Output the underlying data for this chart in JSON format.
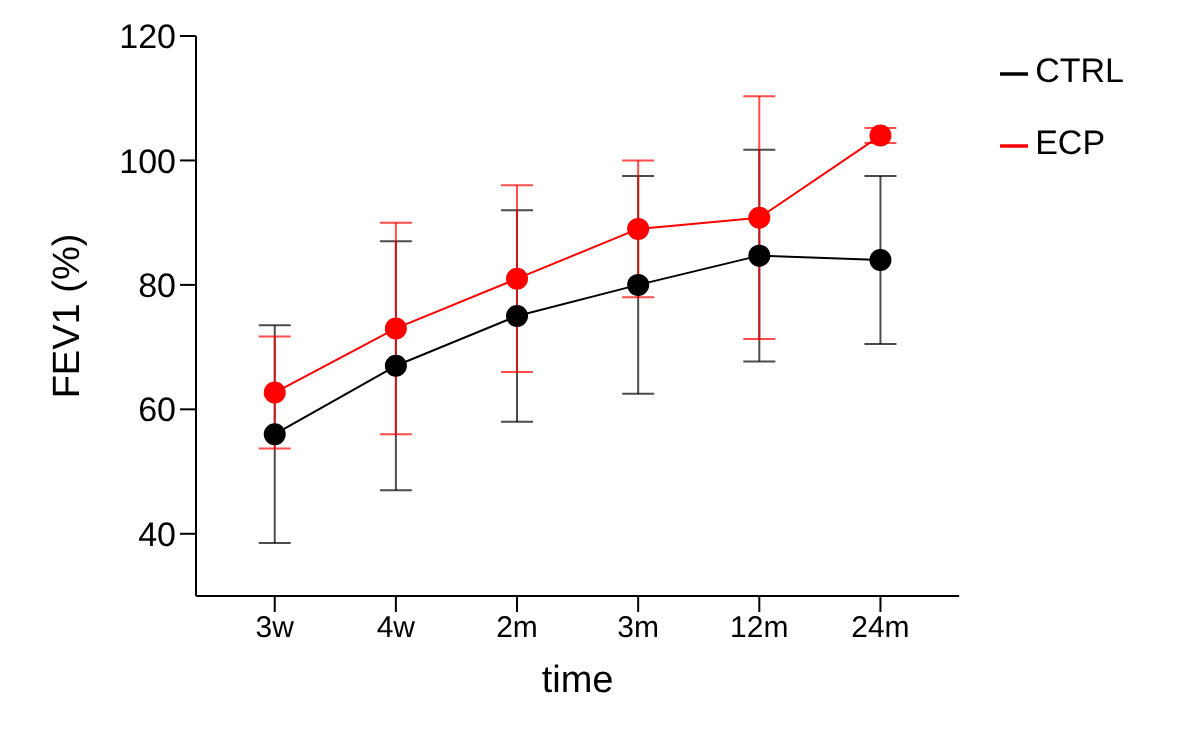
{
  "chart_data": {
    "type": "line",
    "xlabel": "time",
    "ylabel": "FEV1 (%)",
    "categories": [
      "3w",
      "4w",
      "2m",
      "3m",
      "12m",
      "24m"
    ],
    "series": [
      {
        "name": "CTRL",
        "color": "#000000",
        "values": [
          56,
          67,
          75,
          80,
          84.7,
          84
        ],
        "errors": [
          17.5,
          20,
          17,
          17.5,
          17,
          13.5
        ]
      },
      {
        "name": "ECP",
        "color": "#ff0000",
        "values": [
          62.7,
          73,
          81,
          89,
          90.8,
          104
        ],
        "errors": [
          9,
          17,
          15,
          11,
          19.5,
          1.2
        ]
      }
    ],
    "ylim": [
      30,
      120
    ],
    "yticks": [
      40,
      60,
      80,
      100,
      120
    ],
    "grid": false,
    "legend": "top right",
    "marker": "circle",
    "line_style": "solid"
  }
}
